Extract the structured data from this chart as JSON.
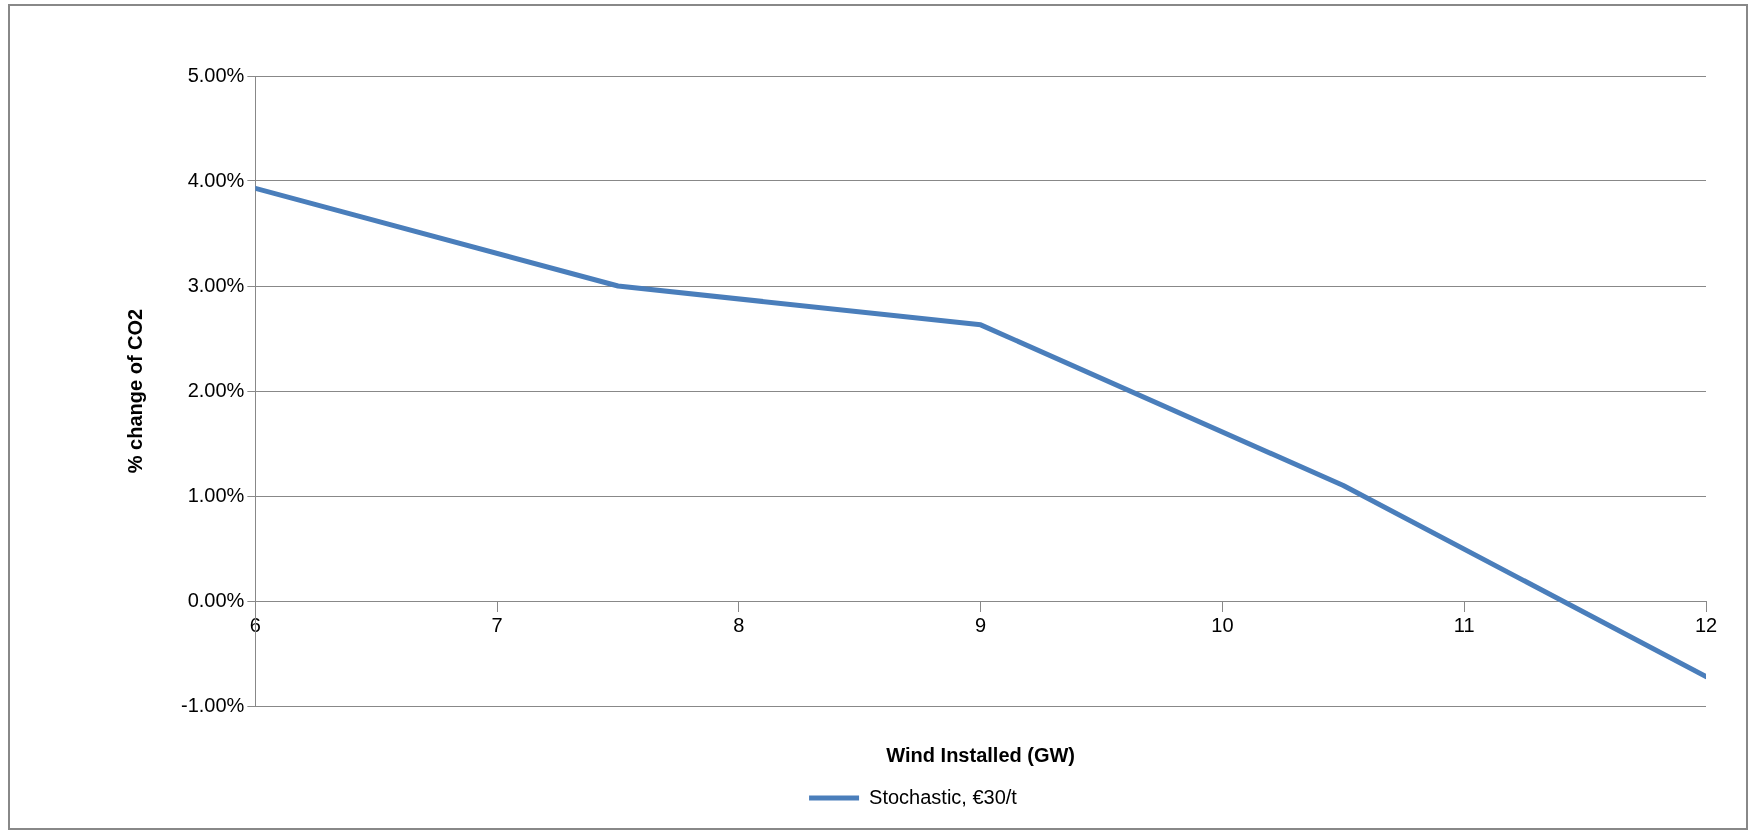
{
  "chart_data": {
    "type": "line",
    "xlabel": "Wind Installed (GW)",
    "ylabel": "% change of CO2",
    "x": [
      6,
      7.5,
      9,
      10.5,
      12
    ],
    "series": [
      {
        "name": "Stochastic, €30/t",
        "color": "#4a7ebb",
        "values": [
          3.93,
          3.0,
          2.63,
          1.1,
          -0.72
        ]
      }
    ],
    "xlim": [
      6,
      12
    ],
    "xticks": [
      6,
      7,
      8,
      9,
      10,
      11,
      12
    ],
    "ylim": [
      -1,
      5
    ],
    "yticks": [
      {
        "value": -1,
        "label": "-1.00%"
      },
      {
        "value": 0,
        "label": "0.00%"
      },
      {
        "value": 1,
        "label": "1.00%"
      },
      {
        "value": 2,
        "label": "2.00%"
      },
      {
        "value": 3,
        "label": "3.00%"
      },
      {
        "value": 4,
        "label": "4.00%"
      },
      {
        "value": 5,
        "label": "5.00%"
      }
    ],
    "grid": "y",
    "legend": "bottom",
    "marker": "none",
    "line_style": "solid"
  }
}
